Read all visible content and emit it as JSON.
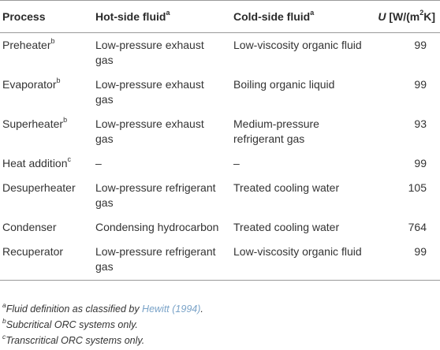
{
  "table": {
    "headers": {
      "process": "Process",
      "hot": "Hot-side fluid",
      "hot_sup": "a",
      "cold": "Cold-side fluid",
      "cold_sup": "a",
      "u_symbol": "U",
      "u_unit_pre": " [W/(m",
      "u_unit_exp": "2",
      "u_unit_post": "K]"
    },
    "rows": [
      {
        "process": "Preheater",
        "sup": "b",
        "hot": "Low-pressure exhaust gas",
        "cold": "Low-viscosity organic fluid",
        "u": "99"
      },
      {
        "process": "Evaporator",
        "sup": "b",
        "hot": "Low-pressure exhaust gas",
        "cold": "Boiling organic liquid",
        "u": "99"
      },
      {
        "process": "Superheater",
        "sup": "b",
        "hot": "Low-pressure exhaust gas",
        "cold": "Medium-pressure refrigerant gas",
        "u": "93"
      },
      {
        "process": "Heat addition",
        "sup": "c",
        "hot": "–",
        "cold": "–",
        "u": "99"
      },
      {
        "process": "Desuperheater",
        "sup": "",
        "hot": "Low-pressure refrigerant gas",
        "cold": "Treated cooling water",
        "u": "105"
      },
      {
        "process": "Condenser",
        "sup": "",
        "hot": "Condensing hydrocarbon",
        "cold": "Treated cooling water",
        "u": "764"
      },
      {
        "process": "Recuperator",
        "sup": "",
        "hot": "Low-pressure refrigerant gas",
        "cold": "Low-viscosity organic fluid",
        "u": "99"
      }
    ]
  },
  "footnotes": [
    {
      "mark": "a",
      "text_pre": "Fluid definition as classified by ",
      "link": "Hewitt (1994)",
      "text_post": "."
    },
    {
      "mark": "b",
      "text_pre": "Subcritical ORC systems only.",
      "link": "",
      "text_post": ""
    },
    {
      "mark": "c",
      "text_pre": "Transcritical ORC systems only.",
      "link": "",
      "text_post": ""
    }
  ]
}
